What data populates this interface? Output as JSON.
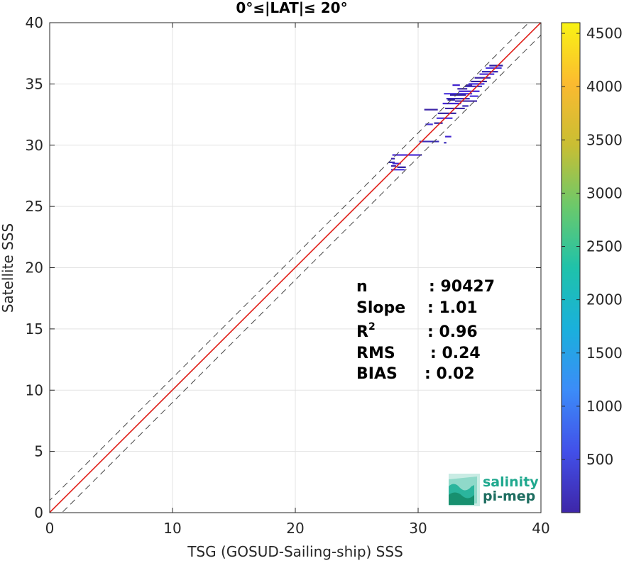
{
  "chart_data": {
    "type": "scatter",
    "title": "0°≤|LAT|≤ 20°",
    "xlabel": "TSG (GOSUD-Sailing-ship) SSS",
    "ylabel": "Satellite SSS",
    "xlim": [
      0,
      40
    ],
    "ylim": [
      0,
      40
    ],
    "xticks": [
      0,
      10,
      20,
      30,
      40
    ],
    "yticks": [
      0,
      5,
      10,
      15,
      20,
      25,
      30,
      35,
      40
    ],
    "grid": true,
    "lines": {
      "identity": {
        "slope": 1,
        "intercept": 0,
        "color": "#000000",
        "style": "solid"
      },
      "fit": {
        "slope": 1.0,
        "intercept": 0.02,
        "color": "#e8251f",
        "style": "solid"
      },
      "upper_bound": {
        "slope": 1,
        "intercept": 1,
        "color": "#444444",
        "style": "dashed"
      },
      "lower_bound": {
        "slope": 1,
        "intercept": -1,
        "color": "#444444",
        "style": "dashed"
      }
    },
    "colorbar": {
      "ticks": [
        500,
        1000,
        1500,
        2000,
        2500,
        3000,
        3500,
        4000,
        4500
      ],
      "range": [
        1,
        4600
      ],
      "colors": [
        "#3e26a8",
        "#4250e9",
        "#3c8cf8",
        "#1ab0dc",
        "#1fc2aa",
        "#6bc96b",
        "#c9be33",
        "#fbba30",
        "#f9f314"
      ]
    },
    "density_segments": [
      {
        "x0": 27.8,
        "x1": 28.2,
        "y": 28.3
      },
      {
        "x0": 27.9,
        "x1": 28.6,
        "y": 28.5
      },
      {
        "x0": 27.6,
        "x1": 28.1,
        "y": 28.6
      },
      {
        "x0": 27.8,
        "x1": 28.9,
        "y": 28.0
      },
      {
        "x0": 28.3,
        "x1": 29.0,
        "y": 28.2
      },
      {
        "x0": 27.8,
        "x1": 28.1,
        "y": 28.9
      },
      {
        "x0": 27.9,
        "x1": 30.3,
        "y": 29.2
      },
      {
        "x0": 30.1,
        "x1": 31.7,
        "y": 30.3
      },
      {
        "x0": 30.6,
        "x1": 31.2,
        "y": 31.7
      },
      {
        "x0": 31.3,
        "x1": 32.0,
        "y": 31.8
      },
      {
        "x0": 30.5,
        "x1": 31.6,
        "y": 32.9
      },
      {
        "x0": 32.2,
        "x1": 32.7,
        "y": 30.7
      },
      {
        "x0": 32.1,
        "x1": 32.3,
        "y": 30.2
      },
      {
        "x0": 31.5,
        "x1": 32.8,
        "y": 32.2
      },
      {
        "x0": 31.6,
        "x1": 33.1,
        "y": 32.6
      },
      {
        "x0": 32.2,
        "x1": 33.8,
        "y": 33.0
      },
      {
        "x0": 32.0,
        "x1": 33.5,
        "y": 33.4
      },
      {
        "x0": 32.3,
        "x1": 34.2,
        "y": 33.8
      },
      {
        "x0": 32.1,
        "x1": 34.4,
        "y": 34.2
      },
      {
        "x0": 32.6,
        "x1": 33.9,
        "y": 34.1
      },
      {
        "x0": 33.0,
        "x1": 34.8,
        "y": 33.6
      },
      {
        "x0": 33.3,
        "x1": 35.0,
        "y": 34.4
      },
      {
        "x0": 33.8,
        "x1": 35.2,
        "y": 34.8
      },
      {
        "x0": 34.1,
        "x1": 35.4,
        "y": 35.0
      },
      {
        "x0": 34.3,
        "x1": 35.6,
        "y": 35.2
      },
      {
        "x0": 34.6,
        "x1": 35.9,
        "y": 35.5
      },
      {
        "x0": 35.0,
        "x1": 36.2,
        "y": 35.8
      },
      {
        "x0": 35.2,
        "x1": 36.5,
        "y": 36.0
      },
      {
        "x0": 35.5,
        "x1": 36.8,
        "y": 36.3
      },
      {
        "x0": 35.8,
        "x1": 36.9,
        "y": 36.5
      },
      {
        "x0": 33.2,
        "x1": 34.0,
        "y": 34.6
      },
      {
        "x0": 32.8,
        "x1": 33.4,
        "y": 34.9
      },
      {
        "x0": 33.6,
        "x1": 34.1,
        "y": 33.2
      },
      {
        "x0": 34.2,
        "x1": 34.9,
        "y": 34.0
      },
      {
        "x0": 32.4,
        "x1": 33.0,
        "y": 33.7
      },
      {
        "x0": 33.9,
        "x1": 34.4,
        "y": 34.9
      }
    ],
    "stats": [
      {
        "label": "n",
        "value": ": 90427"
      },
      {
        "label": "Slope",
        "value": ": 1.01"
      },
      {
        "label": "R",
        "sup": "2",
        "value": ": 0.96"
      },
      {
        "label": "RMS",
        "value": ": 0.24"
      },
      {
        "label": "BIAS",
        "value": ": 0.02"
      }
    ],
    "logo": {
      "line1": "salinity",
      "line2": "pi-mep"
    }
  }
}
